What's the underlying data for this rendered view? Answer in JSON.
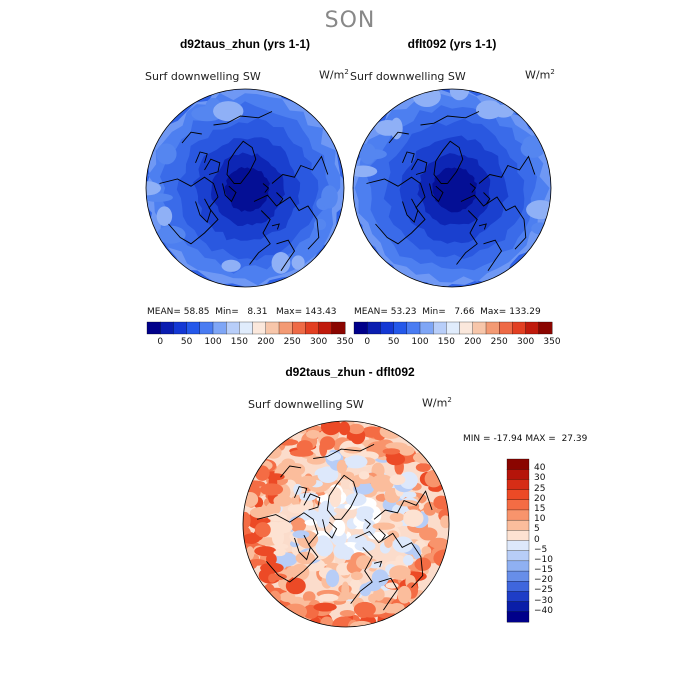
{
  "figure": {
    "season": "SON"
  },
  "chart_data": [
    {
      "type": "heatmap",
      "title": "d92taus_zhun (yrs 1-1)",
      "variable": "Surf downwelling SW",
      "units_base": "W/m",
      "units_exp": "2",
      "projection": "north polar stereographic",
      "stats": {
        "mean_label": "MEAN=",
        "mean": "58.85",
        "min_label": "Min=",
        "min": "8.31",
        "max_label": "Max=",
        "max": "143.43"
      },
      "colorbar_ticks": [
        "0",
        "50",
        "100",
        "150",
        "200",
        "250",
        "300",
        "350"
      ],
      "colorbar_colors": [
        "#00008a",
        "#0a1db0",
        "#1438d4",
        "#2458ea",
        "#4a7cf2",
        "#7fa6f6",
        "#b8cef9",
        "#e0ecfc",
        "#fbe8dc",
        "#f7c6aa",
        "#f39a74",
        "#ee6a46",
        "#e23f22",
        "#c01a0c",
        "#8a0500"
      ]
    },
    {
      "type": "heatmap",
      "title": "dflt092 (yrs 1-1)",
      "variable": "Surf downwelling SW",
      "units_base": "W/m",
      "units_exp": "2",
      "projection": "north polar stereographic",
      "stats": {
        "mean_label": "MEAN=",
        "mean": "53.23",
        "min_label": "Min=",
        "min": "7.66",
        "max_label": "Max=",
        "max": "133.29"
      },
      "colorbar_ticks": [
        "0",
        "50",
        "100",
        "150",
        "200",
        "250",
        "300",
        "350"
      ],
      "colorbar_colors": [
        "#00008a",
        "#0a1db0",
        "#1438d4",
        "#2458ea",
        "#4a7cf2",
        "#7fa6f6",
        "#b8cef9",
        "#e0ecfc",
        "#fbe8dc",
        "#f7c6aa",
        "#f39a74",
        "#ee6a46",
        "#e23f22",
        "#c01a0c",
        "#8a0500"
      ]
    },
    {
      "type": "heatmap",
      "title": "d92taus_zhun - dflt092",
      "variable": "Surf downwelling SW",
      "units_base": "W/m",
      "units_exp": "2",
      "projection": "north polar stereographic",
      "stats": {
        "min_label": "MIN =",
        "min": "-17.94",
        "max_label": "MAX =",
        "max": "27.39"
      },
      "colorbar_ticks": [
        "40",
        "30",
        "25",
        "20",
        "15",
        "10",
        "5",
        "0",
        "−5",
        "−10",
        "−15",
        "−20",
        "−25",
        "−30",
        "−40"
      ],
      "colorbar_colors": [
        "#8a0500",
        "#b5140a",
        "#d62d16",
        "#ec4a26",
        "#f46c44",
        "#f8946c",
        "#fbbd9c",
        "#fde2d2",
        "#dde8fb",
        "#b7cdf7",
        "#8fb0f2",
        "#678ee9",
        "#3f66dd",
        "#1e3dc7",
        "#0a1ea8",
        "#00008a"
      ]
    }
  ]
}
